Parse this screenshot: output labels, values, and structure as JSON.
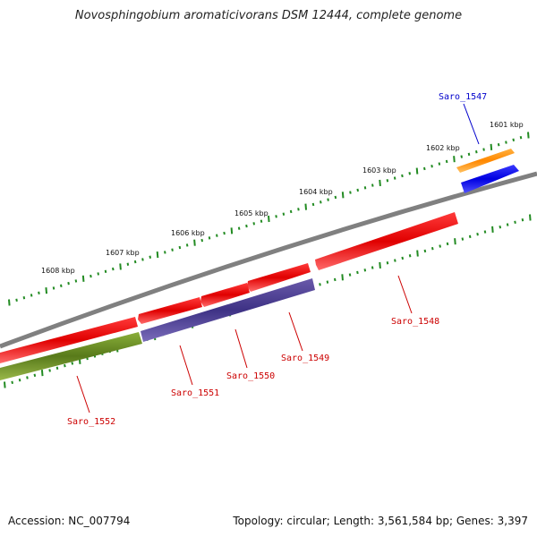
{
  "title": "Novosphingobium aromaticivorans DSM 12444, complete genome",
  "footer": {
    "accession": "Accession: NC_007794",
    "summary": "Topology: circular; Length: 3,561,584 bp; Genes: 3,397"
  },
  "kbp_labels": [
    {
      "text": "1601 kbp"
    },
    {
      "text": "1602 kbp"
    },
    {
      "text": "1603 kbp"
    },
    {
      "text": "1604 kbp"
    },
    {
      "text": "1605 kbp"
    },
    {
      "text": "1606 kbp"
    },
    {
      "text": "1607 kbp"
    },
    {
      "text": "1608 kbp"
    }
  ],
  "genes": [
    {
      "name": "Saro_1547",
      "color": "#0000cc"
    },
    {
      "name": "Saro_1548",
      "color": "#cc0000"
    },
    {
      "name": "Saro_1549",
      "color": "#cc0000"
    },
    {
      "name": "Saro_1550",
      "color": "#cc0000"
    },
    {
      "name": "Saro_1551",
      "color": "#cc0000"
    },
    {
      "name": "Saro_1552",
      "color": "#cc0000"
    }
  ],
  "colors": {
    "backbone": "#808080",
    "tick_marks": "#228b22",
    "feature_red": "#ff0000",
    "feature_orange": "#ff8c00",
    "feature_blue": "#0000ff",
    "feature_purple": "#4b3c8c",
    "feature_olive": "#6b8e23"
  }
}
